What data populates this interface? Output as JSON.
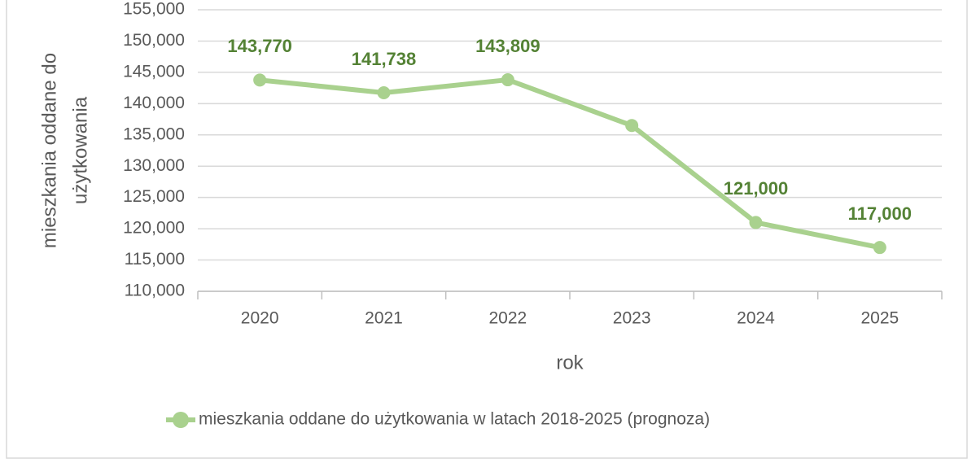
{
  "chart_data": {
    "type": "line",
    "categories": [
      "2020",
      "2021",
      "2022",
      "2023",
      "2024",
      "2025"
    ],
    "series": [
      {
        "name": "mieszkania oddane do użytkowania w latach 2018-2025 (prognoza)",
        "color": "#a9d18e",
        "values": [
          143770,
          141738,
          143809,
          136500,
          121000,
          117000
        ],
        "value_labels": [
          "143,770",
          "141,738",
          "143,809",
          null,
          "121,000",
          "117,000"
        ]
      }
    ],
    "ylim": [
      110000,
      155000
    ],
    "yticks": [
      {
        "value": 110000,
        "label": "110,000"
      },
      {
        "value": 115000,
        "label": "115,000"
      },
      {
        "value": 120000,
        "label": "120,000"
      },
      {
        "value": 125000,
        "label": "125,000"
      },
      {
        "value": 130000,
        "label": "130,000"
      },
      {
        "value": 135000,
        "label": "135,000"
      },
      {
        "value": 140000,
        "label": "140,000"
      },
      {
        "value": 145000,
        "label": "145,000"
      },
      {
        "value": 150000,
        "label": "150,000"
      },
      {
        "value": 155000,
        "label": "155,000"
      }
    ],
    "xlabel": "rok",
    "ylabel": [
      "mieszkania oddane do",
      "użytkowania"
    ],
    "grid": true,
    "legend": "bottom",
    "label_color": "#548235"
  }
}
